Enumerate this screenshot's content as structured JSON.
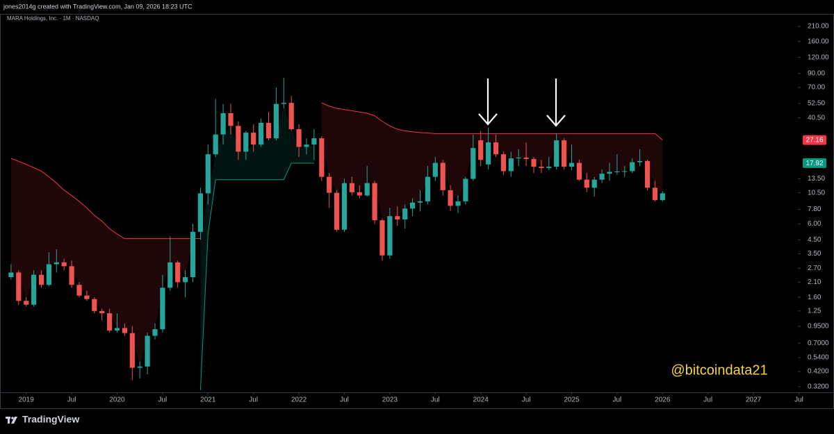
{
  "chart_data": {
    "type": "candlestick",
    "credit": "jones2014g created with TradingView.com, Jan 09, 2026 18:23 UTC",
    "title": "MARA Holdings, Inc. · 1M · NASDAQ",
    "watermark": "@bitcoindata21",
    "brand": "TradingView",
    "log_scale": true,
    "grid": false,
    "up_color": "#26a69a",
    "down_color": "#ef5350",
    "x": [
      "2018-11",
      "2018-12",
      "2019-01",
      "2019-02",
      "2019-03",
      "2019-04",
      "2019-05",
      "2019-06",
      "2019-07",
      "2019-08",
      "2019-09",
      "2019-10",
      "2019-11",
      "2019-12",
      "2020-01",
      "2020-02",
      "2020-03",
      "2020-04",
      "2020-05",
      "2020-06",
      "2020-07",
      "2020-08",
      "2020-09",
      "2020-10",
      "2020-11",
      "2020-12",
      "2021-01",
      "2021-02",
      "2021-03",
      "2021-04",
      "2021-05",
      "2021-06",
      "2021-07",
      "2021-08",
      "2021-09",
      "2021-10",
      "2021-11",
      "2021-12",
      "2022-01",
      "2022-02",
      "2022-03",
      "2022-04",
      "2022-05",
      "2022-06",
      "2022-07",
      "2022-08",
      "2022-09",
      "2022-10",
      "2022-11",
      "2022-12",
      "2023-01",
      "2023-02",
      "2023-03",
      "2023-04",
      "2023-05",
      "2023-06",
      "2023-07",
      "2023-08",
      "2023-09",
      "2023-10",
      "2023-11",
      "2023-12",
      "2024-01",
      "2024-02",
      "2024-03",
      "2024-04",
      "2024-05",
      "2024-06",
      "2024-07",
      "2024-08",
      "2024-09",
      "2024-10",
      "2024-11",
      "2024-12",
      "2025-01",
      "2025-02",
      "2025-03",
      "2025-04",
      "2025-05",
      "2025-06",
      "2025-07",
      "2025-08",
      "2025-09",
      "2025-10",
      "2025-11",
      "2025-12",
      "2026-01"
    ],
    "open": [
      2.3,
      2.5,
      1.5,
      1.4,
      2.4,
      2.0,
      2.9,
      3.0,
      2.8,
      2.0,
      1.65,
      1.55,
      1.25,
      1.2,
      0.88,
      0.92,
      0.84,
      0.45,
      0.46,
      0.8,
      0.9,
      1.9,
      3.0,
      2.1,
      2.3,
      5.2,
      10.4,
      21,
      30,
      44,
      35,
      22,
      31,
      25,
      37,
      28,
      52,
      53,
      33,
      24,
      25,
      28,
      14,
      10.5,
      5.4,
      12.5,
      10.6,
      10,
      12.5,
      6.4,
      3.4,
      6.9,
      6.5,
      7.9,
      8.8,
      9,
      14,
      18,
      11,
      8.3,
      9,
      13.5,
      27,
      17.5,
      26,
      21,
      15.5,
      19.5,
      19.8,
      19.3,
      16.8,
      16.4,
      16.8,
      27,
      16.8,
      18,
      13.3,
      11.5,
      13.3,
      14.8,
      15.3,
      15.4,
      15.5,
      18.2,
      18.6,
      11.5,
      9.2
    ],
    "high": [
      2.9,
      2.6,
      1.6,
      2.6,
      2.6,
      3.6,
      3.8,
      3.2,
      3.1,
      2.1,
      1.8,
      1.6,
      1.3,
      1.3,
      1.2,
      1.0,
      0.95,
      0.5,
      0.85,
      1.0,
      2.4,
      4.8,
      3.1,
      2.6,
      6.0,
      11.5,
      25,
      57,
      52,
      52,
      38,
      32,
      36,
      40,
      45,
      70,
      83,
      60,
      36,
      28,
      33,
      29,
      15,
      11,
      13.5,
      14,
      12,
      17,
      13,
      6.6,
      8,
      8.2,
      8.5,
      9.5,
      11,
      17,
      20,
      19,
      12,
      10,
      14,
      30,
      32,
      34,
      30,
      22,
      22,
      23,
      26,
      20,
      19,
      20,
      30.5,
      28,
      25,
      19,
      15,
      14,
      16,
      18,
      21,
      17,
      19.5,
      23,
      19,
      13,
      10.8
    ],
    "low": [
      2.2,
      1.4,
      1.35,
      1.35,
      1.9,
      1.95,
      2.5,
      2.6,
      1.9,
      1.6,
      1.5,
      1.2,
      1.05,
      0.85,
      0.85,
      0.8,
      0.36,
      0.37,
      0.4,
      0.75,
      0.85,
      1.8,
      1.9,
      1.6,
      2.1,
      4.5,
      8.5,
      20,
      25,
      30,
      19,
      19,
      22,
      24,
      27,
      27,
      48,
      32,
      20,
      21,
      19,
      13,
      8,
      5.2,
      5.2,
      10,
      9.5,
      9.8,
      6,
      3.1,
      3.2,
      5.8,
      5.5,
      6.9,
      7.5,
      8.5,
      13,
      10,
      7.6,
      7.3,
      8.5,
      13,
      17,
      16,
      20,
      14.5,
      14,
      17,
      17,
      15,
      15,
      15.8,
      16,
      16,
      15.8,
      13,
      10.6,
      9.8,
      12.5,
      13,
      14.5,
      14,
      15,
      17,
      11,
      9,
      9
    ],
    "close": [
      2.5,
      1.5,
      1.4,
      2.4,
      2.0,
      2.9,
      3.0,
      2.8,
      2.0,
      1.65,
      1.55,
      1.25,
      1.2,
      0.88,
      0.92,
      0.84,
      0.45,
      0.46,
      0.8,
      0.9,
      1.9,
      3.0,
      2.1,
      2.3,
      5.2,
      10.4,
      21,
      30,
      44,
      35,
      22,
      31,
      25,
      37,
      28,
      52,
      53,
      33,
      24,
      25,
      28,
      14,
      10.5,
      5.4,
      12.5,
      10.6,
      10,
      12.5,
      6.4,
      3.4,
      6.9,
      6.5,
      7.9,
      8.8,
      9.0,
      14,
      18,
      11,
      8.3,
      9,
      13.5,
      23.5,
      19,
      26,
      21,
      15.5,
      19.5,
      19.8,
      19.3,
      16.8,
      16.4,
      16.8,
      27,
      16.8,
      18,
      13.3,
      11.5,
      13.3,
      14.8,
      15.3,
      15.4,
      15.5,
      18.2,
      18.6,
      11.5,
      9.2,
      10.4
    ],
    "bands": [
      {
        "color": "#f23645",
        "values": [
          19.5,
          18.5,
          17.5,
          16.5,
          15.5,
          14,
          12.5,
          11,
          10,
          9,
          8,
          7,
          6.3,
          5.5,
          5,
          4.6,
          4.6,
          4.6,
          4.6,
          4.6,
          4.6,
          4.6,
          4.6,
          4.6,
          4.6,
          4.6,
          null,
          null,
          null,
          null,
          null,
          null,
          null,
          null,
          null,
          null,
          null,
          null,
          null,
          null,
          null,
          53,
          50,
          48,
          47,
          46,
          45,
          44,
          42,
          38,
          35,
          33,
          32,
          31.5,
          31,
          30.8,
          30.5,
          30.5,
          30.5,
          30.5,
          30.5,
          30.5,
          30.5,
          30.5,
          30.5,
          30.5,
          30.5,
          30.5,
          30.5,
          30.5,
          30.5,
          30.5,
          30.5,
          30.5,
          30.5,
          30.5,
          30.5,
          30.5,
          30.5,
          30.5,
          30.5,
          30.5,
          30.5,
          30.5,
          30.5,
          30.5,
          27.16
        ]
      },
      {
        "color": "#089981",
        "values": [
          null,
          null,
          null,
          null,
          null,
          null,
          null,
          null,
          null,
          null,
          null,
          null,
          null,
          null,
          null,
          null,
          null,
          null,
          null,
          null,
          null,
          null,
          null,
          null,
          null,
          0.3,
          5,
          13.3,
          13.3,
          13.3,
          13.3,
          13.3,
          13.3,
          13.3,
          13.3,
          13.3,
          13.3,
          17.9,
          17.9,
          17.9,
          17.9,
          null,
          null,
          null,
          null,
          null,
          null,
          null,
          null,
          null,
          null,
          null,
          null,
          null,
          null,
          null,
          null,
          null,
          null,
          null,
          null,
          null,
          null,
          null,
          null,
          null,
          null,
          null,
          null,
          null,
          null,
          null,
          null,
          null,
          null,
          null,
          null,
          null,
          null,
          null,
          null,
          null,
          null,
          null,
          null,
          null,
          null
        ]
      }
    ],
    "price_labels": [
      {
        "value": 27.16,
        "color": "#f23645"
      },
      {
        "value": 17.92,
        "color": "#089981"
      }
    ],
    "xlim": [
      "2018-10",
      "2027-08"
    ],
    "xticks": [
      {
        "value": "2019-01",
        "label": "2019"
      },
      {
        "value": "2019-07",
        "label": "Jul"
      },
      {
        "value": "2020-01",
        "label": "2020"
      },
      {
        "value": "2020-07",
        "label": "Jul"
      },
      {
        "value": "2021-01",
        "label": "2021"
      },
      {
        "value": "2021-07",
        "label": "Jul"
      },
      {
        "value": "2022-01",
        "label": "2022"
      },
      {
        "value": "2022-07",
        "label": "Jul"
      },
      {
        "value": "2023-01",
        "label": "2023"
      },
      {
        "value": "2023-07",
        "label": "Jul"
      },
      {
        "value": "2024-01",
        "label": "2024"
      },
      {
        "value": "2024-07",
        "label": "Jul"
      },
      {
        "value": "2025-01",
        "label": "2025"
      },
      {
        "value": "2025-07",
        "label": "Jul"
      },
      {
        "value": "2026-01",
        "label": "2026"
      },
      {
        "value": "2026-07",
        "label": "Jul"
      },
      {
        "value": "2027-01",
        "label": "2027"
      },
      {
        "value": "2027-07",
        "label": "Jul"
      }
    ],
    "ylim": [
      0.289,
      263
    ],
    "yticks": [
      {
        "value": 0.32,
        "label": "0.3200"
      },
      {
        "value": 0.42,
        "label": "0.4200"
      },
      {
        "value": 0.54,
        "label": "0.5400"
      },
      {
        "value": 0.7,
        "label": "0.7000"
      },
      {
        "value": 0.95,
        "label": "0.9500"
      },
      1.25,
      {
        "value": 1.6,
        "label": "1.60"
      },
      {
        "value": 2.1,
        "label": "2.10"
      },
      {
        "value": 2.7,
        "label": "2.70"
      },
      {
        "value": 3.5,
        "label": "3.50"
      },
      {
        "value": 4.5,
        "label": "4.50"
      },
      {
        "value": 6,
        "label": "6.00"
      },
      {
        "value": 7.8,
        "label": "7.80"
      },
      {
        "value": 10.5,
        "label": "10.50"
      },
      {
        "value": 13.5,
        "label": "13.50"
      },
      {
        "value": 40.5,
        "label": "40.50"
      },
      {
        "value": 52.5,
        "label": "52.50"
      },
      {
        "value": 70,
        "label": "70.00"
      },
      {
        "value": 90,
        "label": "90.00"
      },
      {
        "value": 120,
        "label": "120.00"
      },
      {
        "value": 160,
        "label": "160.00"
      },
      {
        "value": 210,
        "label": "210.00"
      }
    ]
  }
}
